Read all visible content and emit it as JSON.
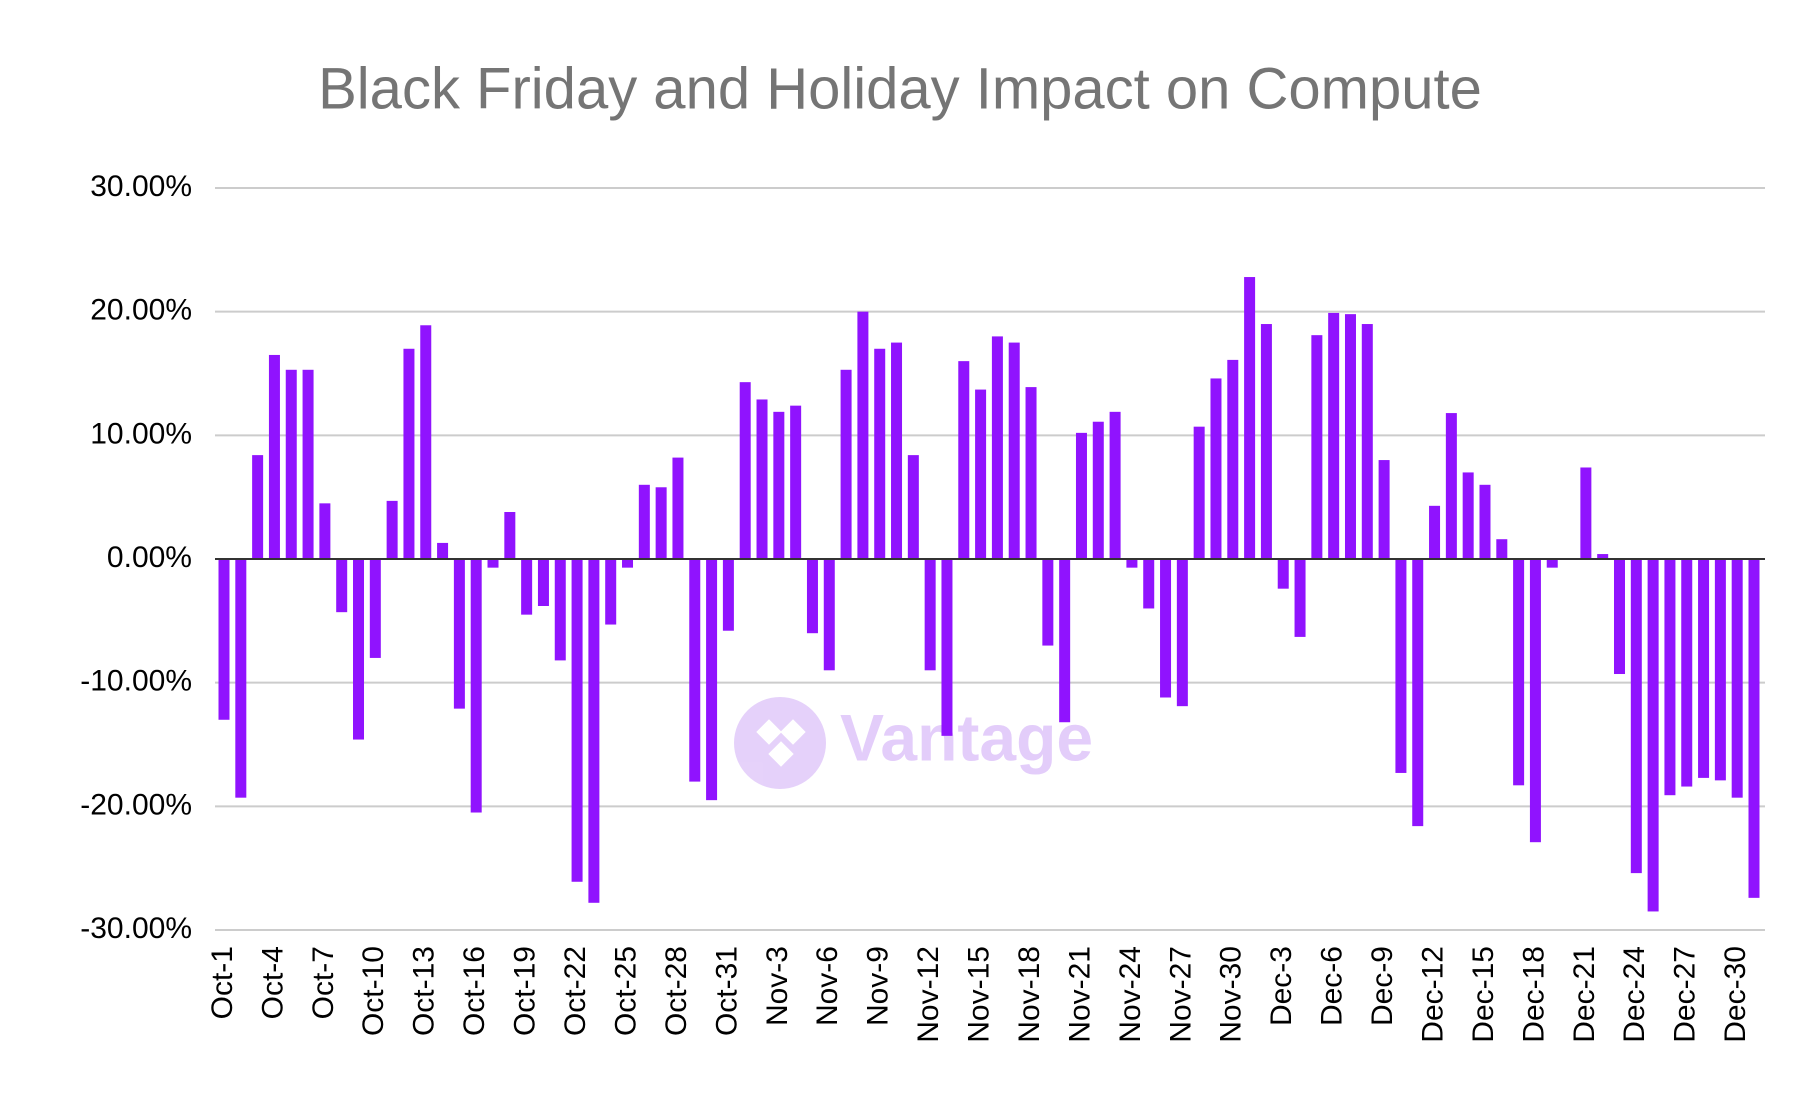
{
  "chart_data": {
    "type": "bar",
    "title": "Black Friday and Holiday Impact on Compute",
    "watermark": "Vantage",
    "categories": [
      "Oct-1",
      null,
      null,
      "Oct-4",
      null,
      null,
      "Oct-7",
      null,
      null,
      "Oct-10",
      null,
      null,
      "Oct-13",
      null,
      null,
      "Oct-16",
      null,
      null,
      "Oct-19",
      null,
      null,
      "Oct-22",
      null,
      null,
      "Oct-25",
      null,
      null,
      "Oct-28",
      null,
      null,
      "Oct-31",
      null,
      null,
      "Nov-3",
      null,
      null,
      "Nov-6",
      null,
      null,
      "Nov-9",
      null,
      null,
      "Nov-12",
      null,
      null,
      "Nov-15",
      null,
      null,
      "Nov-18",
      null,
      null,
      "Nov-21",
      null,
      null,
      "Nov-24",
      null,
      null,
      "Nov-27",
      null,
      null,
      "Nov-30",
      null,
      null,
      "Dec-3",
      null,
      null,
      "Dec-6",
      null,
      null,
      "Dec-9",
      null,
      null,
      "Dec-12",
      null,
      null,
      "Dec-15",
      null,
      null,
      "Dec-18",
      null,
      null,
      "Dec-21",
      null,
      null,
      "Dec-24",
      null,
      null,
      "Dec-27",
      null,
      null,
      "Dec-30",
      null
    ],
    "values": [
      -13,
      -19.3,
      8.4,
      16.5,
      15.3,
      15.3,
      4.5,
      -4.3,
      -14.6,
      -8,
      4.7,
      17,
      18.9,
      1.3,
      -12.1,
      -20.5,
      -0.7,
      3.8,
      -4.5,
      -3.8,
      -8.2,
      -26.1,
      -27.8,
      -5.3,
      -0.7,
      6,
      5.8,
      8.2,
      -18,
      -19.5,
      -5.8,
      14.3,
      12.9,
      11.9,
      12.4,
      -6,
      -9,
      15.3,
      20,
      17,
      17.5,
      8.4,
      -9,
      -14.3,
      16,
      13.7,
      18,
      17.5,
      13.9,
      -7,
      -13.2,
      10.2,
      11.1,
      11.9,
      -0.7,
      -4,
      -11.2,
      -11.9,
      10.7,
      14.6,
      16.1,
      22.8,
      19,
      -2.4,
      -6.3,
      18.1,
      19.9,
      19.8,
      19,
      8,
      -17.3,
      -21.6,
      4.3,
      11.8,
      7,
      6,
      1.6,
      -18.3,
      -22.9,
      -0.7,
      0,
      7.4,
      0.4,
      -9.3,
      -25.4,
      -28.5,
      -19.1,
      -18.4,
      -17.7,
      -17.9,
      -19.3,
      -27.4
    ],
    "color": "#9013fe",
    "ylim": [
      -30,
      30
    ],
    "yticks": [
      {
        "value": -30,
        "label": "-30.00%"
      },
      {
        "value": -20,
        "label": "-20.00%"
      },
      {
        "value": -10,
        "label": "-10.00%"
      },
      {
        "value": 0,
        "label": "0.00%"
      },
      {
        "value": 10,
        "label": "10.00%"
      },
      {
        "value": 20,
        "label": "20.00%"
      },
      {
        "value": 30,
        "label": "30.00%"
      }
    ],
    "grid": true
  }
}
